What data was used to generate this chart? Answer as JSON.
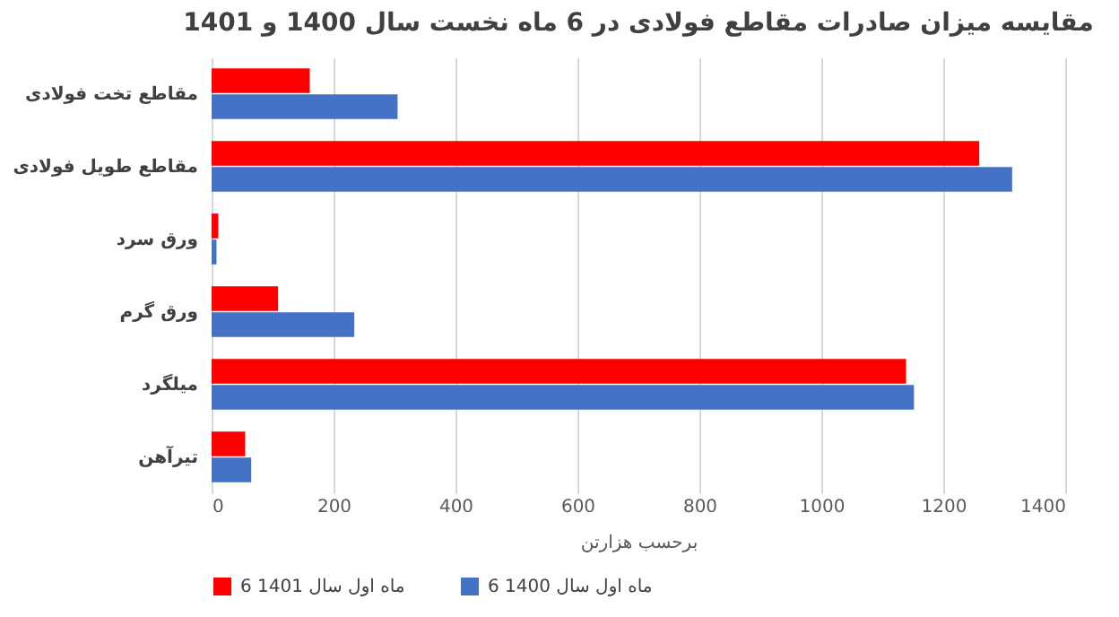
{
  "chart_data": {
    "type": "bar",
    "orientation": "horizontal",
    "title": "مقایسه میزان صادرات مقاطع فولادی در 6 ماه نخست سال 1400 و 1401",
    "xlabel": "برحسب هزارتن",
    "categories": [
      "مقاطع تخت فولادی",
      "مقاطع طویل فولادی",
      "ورق سرد",
      "ورق گرم",
      "میلگرد",
      "تیرآهن"
    ],
    "series": [
      {
        "name": "6 ماه اول سال 1401",
        "color": "#ff0000",
        "values": [
          161,
          1259,
          11,
          109,
          1139,
          55
        ]
      },
      {
        "name": "6 ماه اول سال 1400",
        "color": "#4472c4",
        "values": [
          305,
          1313,
          8,
          234,
          1152,
          65
        ]
      }
    ],
    "xlim": [
      0,
      1400
    ],
    "xticks": [
      0,
      200,
      400,
      600,
      800,
      1000,
      1200,
      1400
    ],
    "grid": "x",
    "legend": "bottom"
  }
}
